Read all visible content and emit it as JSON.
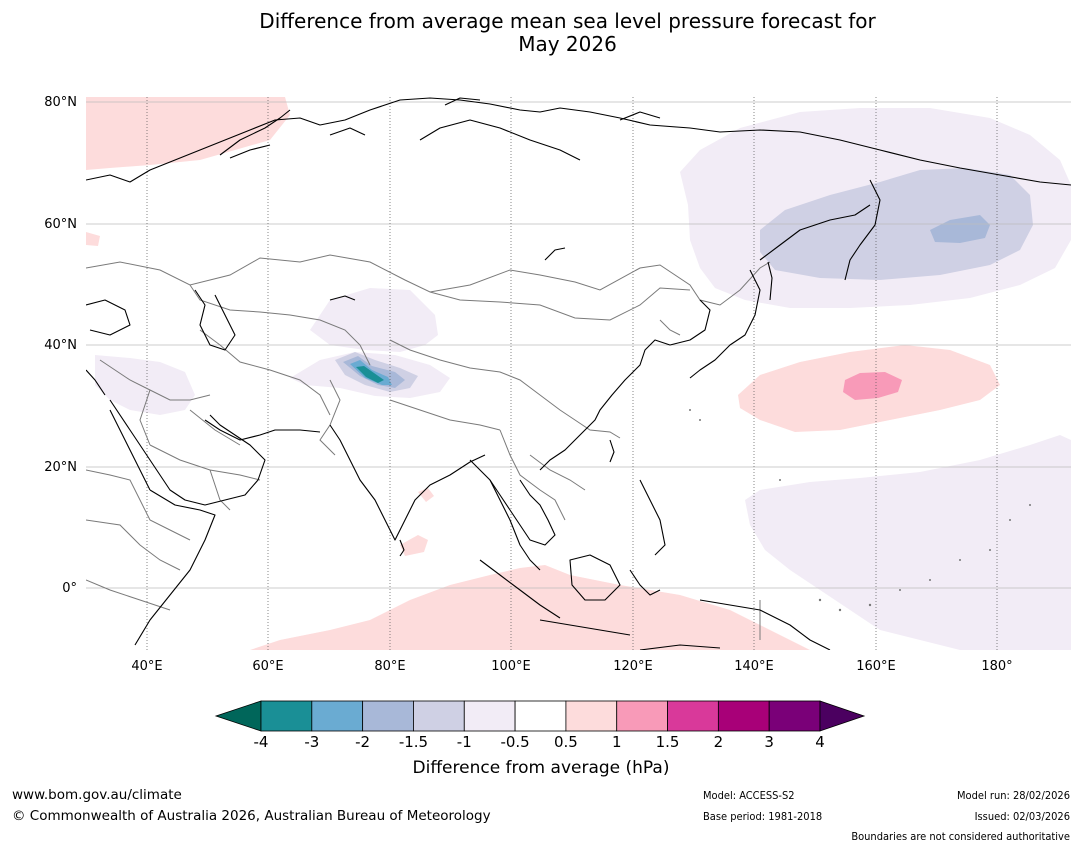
{
  "title": {
    "line1": "Difference from average mean sea level pressure forecast for",
    "line2": "May 2026"
  },
  "map": {
    "region": "Asia",
    "latitude_labels": [
      "80°N",
      "60°N",
      "40°N",
      "20°N",
      "0°"
    ],
    "longitude_labels": [
      "40°E",
      "60°E",
      "80°E",
      "100°E",
      "120°E",
      "140°E",
      "160°E",
      "180°"
    ]
  },
  "colorbar": {
    "title": "Difference from average (hPa)",
    "ticks": [
      "-4",
      "-3",
      "-2",
      "-1.5",
      "-1",
      "-0.5",
      "0.5",
      "1",
      "1.5",
      "2",
      "3",
      "4"
    ],
    "colors": {
      "below": "#00665a",
      "bins": [
        "#1a8f96",
        "#6aabd2",
        "#a8b8d8",
        "#cfd0e4",
        "#f2ecf6",
        "#ffffff",
        "#fddcdc",
        "#f89ab8",
        "#d9399a",
        "#a80078",
        "#7a0078"
      ],
      "above": "#4b0060"
    }
  },
  "footer": {
    "website": "www.bom.gov.au/climate",
    "copyright": "© Commonwealth of Australia 2026, Australian Bureau of Meteorology",
    "model": "Model: ACCESS-S2",
    "base_period": "Base period: 1981-2018",
    "model_run": "Model run: 28/02/2026",
    "issued": "Issued: 02/03/2026",
    "disclaimer": "Boundaries are not considered authoritative"
  }
}
